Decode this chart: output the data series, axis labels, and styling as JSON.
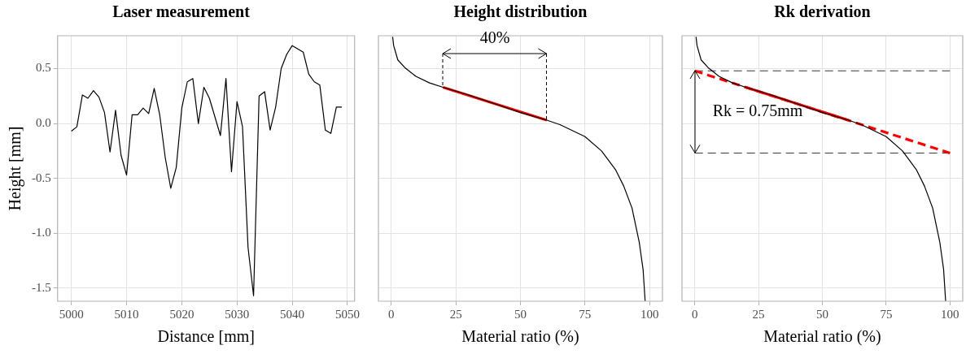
{
  "chart_data": [
    {
      "type": "line",
      "title": "Laser measurement",
      "xlabel": "Distance [mm]",
      "ylabel": "Height [mm]",
      "xlim": [
        4997.5,
        5051.3
      ],
      "xticks": [
        5000,
        5010,
        5020,
        5030,
        5040,
        5050
      ],
      "ylim": [
        -1.62,
        0.8
      ],
      "yticks": [
        {
          "value": -1.5,
          "label": "-1.5"
        },
        {
          "value": -1,
          "label": "-1.0"
        },
        {
          "value": -0.5,
          "label": "-0.5"
        },
        {
          "value": 0,
          "label": "0.0"
        },
        {
          "value": 0.5,
          "label": "0.5"
        }
      ],
      "grid": true,
      "marker": "none",
      "line_style": "solid",
      "series": [
        {
          "color": "#000000",
          "x": [
            5000,
            5001,
            5002,
            5003,
            5004,
            5005,
            5006,
            5007,
            5008,
            5009,
            5010,
            5011,
            5012,
            5013,
            5014,
            5015,
            5016,
            5017,
            5018,
            5019,
            5020,
            5021,
            5022,
            5023,
            5024,
            5025,
            5026,
            5027,
            5028,
            5029,
            5030,
            5031,
            5032,
            5033,
            5034,
            5035,
            5036,
            5037,
            5038,
            5039,
            5040,
            5041,
            5042,
            5043,
            5044,
            5045,
            5046,
            5047,
            5048,
            5049
          ],
          "values": [
            -0.07,
            -0.03,
            0.26,
            0.23,
            0.3,
            0.24,
            0.1,
            -0.26,
            0.12,
            -0.29,
            -0.47,
            0.08,
            0.08,
            0.14,
            0.09,
            0.32,
            0.08,
            -0.31,
            -0.59,
            -0.4,
            0.14,
            0.38,
            0.41,
            0.0,
            0.33,
            0.23,
            0.06,
            -0.11,
            0.41,
            -0.44,
            0.2,
            -0.03,
            -1.13,
            -1.57,
            0.25,
            0.29,
            -0.06,
            0.15,
            0.5,
            0.63,
            0.71,
            0.68,
            0.65,
            0.45,
            0.38,
            0.35,
            -0.06,
            -0.09,
            0.15,
            0.15
          ]
        }
      ]
    },
    {
      "type": "line",
      "title": "Height distribution",
      "xlabel": "Material ratio (%)",
      "xlim": [
        -5,
        105
      ],
      "xticks": [
        0,
        25,
        50,
        75,
        100
      ],
      "ylim": [
        -1.62,
        0.8
      ],
      "yticks": [
        -1.5,
        -1,
        -0.5,
        0,
        0.5
      ],
      "tick_labels": "x",
      "grid": true,
      "marker": "none",
      "line_style": "solid",
      "annotations": [
        "40%"
      ],
      "series": [
        {
          "color": "#000000",
          "x": [
            0.5,
            0.9,
            2.5,
            5.2,
            9.5,
            14.8,
            20,
            30,
            40,
            50,
            60.2,
            65.3,
            75,
            81.4,
            86.8,
            90,
            93.2,
            96,
            97.5,
            98.3
          ],
          "values": [
            0.79,
            0.71,
            0.58,
            0.51,
            0.43,
            0.37,
            0.33,
            0.26,
            0.18,
            0.1,
            0.03,
            -0.01,
            -0.12,
            -0.25,
            -0.42,
            -0.57,
            -0.77,
            -1.08,
            -1.33,
            -1.62
          ]
        },
        {
          "color": "#ff0000",
          "x": [
            20,
            60.2
          ],
          "values": [
            0.33,
            0.03
          ]
        }
      ]
    },
    {
      "type": "line",
      "title": "Rk derivation",
      "xlabel": "Material ratio (%)",
      "xlim": [
        -5,
        105
      ],
      "xticks": [
        0,
        25,
        50,
        75,
        100
      ],
      "ylim": [
        -1.62,
        0.8
      ],
      "yticks": [
        -1.5,
        -1,
        -0.5,
        0,
        0.5
      ],
      "tick_labels": "x",
      "grid": true,
      "marker": "none",
      "line_style": "solid",
      "annotations": [
        "Rk = 0.75mm"
      ],
      "ref_lines": [
        {
          "axis": "y",
          "value": 0.48,
          "color": "#333333",
          "line_style": "dashed"
        },
        {
          "axis": "y",
          "value": -0.27,
          "color": "#333333",
          "line_style": "dashed"
        }
      ],
      "series": [
        {
          "color": "#000000",
          "x": [
            0.5,
            0.9,
            2.5,
            5.2,
            9.5,
            14.8,
            20,
            30,
            40,
            50,
            60.2,
            65.3,
            75,
            81.4,
            86.8,
            90,
            93.2,
            96,
            97.5,
            98.3
          ],
          "values": [
            0.79,
            0.71,
            0.58,
            0.51,
            0.43,
            0.37,
            0.33,
            0.26,
            0.18,
            0.1,
            0.03,
            -0.01,
            -0.12,
            -0.25,
            -0.42,
            -0.57,
            -0.77,
            -1.08,
            -1.33,
            -1.62
          ]
        },
        {
          "color": "#ff0000",
          "x": [
            20,
            60.2
          ],
          "values": [
            0.33,
            0.03
          ]
        },
        {
          "color": "#ff0000",
          "line_style": "dashed",
          "x": [
            0,
            100
          ],
          "values": [
            0.48,
            -0.27
          ]
        }
      ]
    }
  ]
}
